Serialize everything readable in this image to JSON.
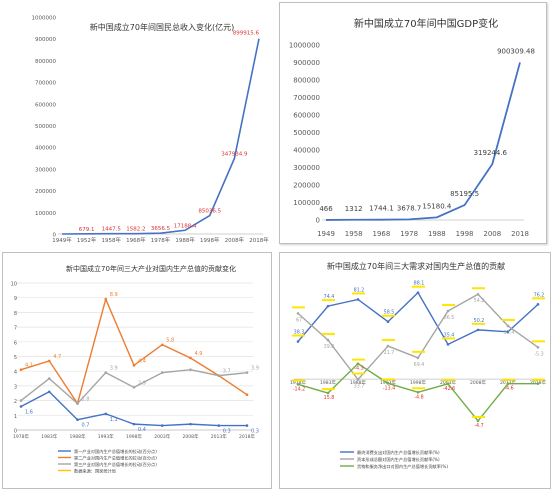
{
  "chart_data": [
    {
      "type": "line",
      "title": "新中国成立70年间国民总收入变化(亿元)",
      "categories": [
        "1949年",
        "1952年",
        "1958年",
        "1968年",
        "1978年",
        "1988年",
        "1998年",
        "2008年",
        "2018年"
      ],
      "series": [
        {
          "name": "",
          "color": "#4472c4",
          "values": [
            0,
            679.1,
            1447.5,
            1582.2,
            3656.5,
            17188.4,
            85036.5,
            347934.9,
            899915.6
          ]
        }
      ],
      "data_labels": [
        "",
        "679.1",
        "1447.5",
        "1582.2",
        "3656.5",
        "17188.4",
        "85036.5",
        "347934.9",
        "899915.6"
      ],
      "yticks": [
        "0",
        "100000",
        "200000",
        "300000",
        "400000",
        "500000",
        "600000",
        "700000",
        "800000",
        "900000",
        "1000000"
      ],
      "ylim": [
        0,
        1000000
      ],
      "xlabel": "",
      "ylabel": "",
      "grid": false
    },
    {
      "type": "line",
      "title": "新中国成立70年间中国GDP变化",
      "categories": [
        "1949",
        "1958",
        "1968",
        "1978",
        "1988",
        "1998",
        "2008",
        "2018"
      ],
      "series": [
        {
          "name": "",
          "color": "#4472c4",
          "values": [
            466,
            1312,
            1744.1,
            3678.7,
            15180.4,
            85195.5,
            319244.6,
            900309.48
          ]
        }
      ],
      "data_labels": [
        "466",
        "1312",
        "1744.1",
        "3678.7",
        "15180.4",
        "85195.5",
        "319244.6",
        "900309.48"
      ],
      "yticks": [
        "0",
        "100000",
        "200000",
        "300000",
        "400000",
        "500000",
        "600000",
        "700000",
        "800000",
        "900000",
        "1000000"
      ],
      "ylim": [
        0,
        1000000
      ],
      "xlabel": "",
      "ylabel": "",
      "grid": false
    },
    {
      "type": "line",
      "title": "新中国成立70年间三大产业对国内生产总值的贡献变化",
      "categories": [
        "1978年",
        "1983年",
        "1988年",
        "1993年",
        "1998年",
        "2003年",
        "2008年",
        "2013年",
        "2018年"
      ],
      "series": [
        {
          "name": "第一产业对国内生产总值增长的拉动(百分点)",
          "color": "#4472c4",
          "values": [
            1.6,
            2.6,
            0.7,
            1.1,
            0.4,
            0.3,
            0.4,
            0.3,
            0.3
          ]
        },
        {
          "name": "第二产业对国内生产总值增长的拉动(百分点)",
          "color": "#ed7d31",
          "values": [
            4.1,
            4.7,
            1.8,
            8.9,
            4.4,
            5.8,
            4.9,
            3.7,
            2.4
          ]
        },
        {
          "name": "第三产业对国内生产总值增长的拉动(百分点)",
          "color": "#a5a5a5",
          "values": [
            2.0,
            3.5,
            1.8,
            3.9,
            2.9,
            3.9,
            4.1,
            3.7,
            3.9
          ]
        }
      ],
      "blue_labels": [
        "1.6",
        "",
        "0.7",
        "1.1",
        "0.4",
        "",
        "",
        "0.3",
        "0.3"
      ],
      "orange_labels": [
        "4.1",
        "4.7",
        "",
        "8.9",
        "4.4",
        "5.8",
        "4.9",
        "",
        ""
      ],
      "gray_labels": [
        "",
        "",
        "1.8",
        "3.9",
        "2.9",
        "",
        "",
        "3.7",
        "3.9"
      ],
      "footnote": "数据来源：国家统计局",
      "yticks": [
        "0",
        "1",
        "2",
        "3",
        "4",
        "5",
        "6",
        "7",
        "8",
        "9",
        "10"
      ],
      "ylim": [
        0,
        10
      ],
      "xlabel": "",
      "ylabel": "",
      "grid": true
    },
    {
      "type": "line",
      "title": "新中国成立70年间三大需求对国内生产总值的贡献",
      "categories": [
        "1978年",
        "1983年",
        "1988年",
        "1993年",
        "1998年",
        "2003年",
        "2008年",
        "2013年",
        "2018年"
      ],
      "series": [
        {
          "name": "最终消费支出对国内生产总值增长贡献率(%)",
          "color": "#4472c4",
          "values": [
            38.3,
            74.4,
            81.2,
            58.5,
            88.1,
            35.4,
            50.2,
            48.2,
            76.2
          ]
        },
        {
          "name": "资本形成总额对国内生产总值增长贡献率(%)",
          "color": "#a5a5a5",
          "values": [
            67.0,
            39.8,
            -0.4,
            33.7,
            21.7,
            69.4,
            86.5,
            54.2,
            32.4
          ]
        },
        {
          "name": "货物和服务净出口对国内生产总值增长贡献率(%)",
          "color": "#70ad47",
          "values": [
            -5.3,
            -14.2,
            15.8,
            -4.3,
            -13.4,
            -4.8,
            -42.6,
            -4.7,
            -4.6
          ]
        }
      ],
      "value_labels": [
        "38.3",
        "74.4",
        "81.2",
        "58.5",
        "88.1",
        "35.4",
        "50.2",
        "76.2",
        "67",
        "39.8",
        "33.7",
        "21.7",
        "69.4",
        "86.5",
        "54.2",
        "32.4",
        "-5.3",
        "-14.2",
        "15.8",
        "-4.3",
        "-13.4",
        "-4.8",
        "-42.6",
        "-4.7",
        "-4.6"
      ],
      "ylim": [
        -60,
        100
      ],
      "xlabel": "",
      "ylabel": "",
      "grid": false
    }
  ]
}
